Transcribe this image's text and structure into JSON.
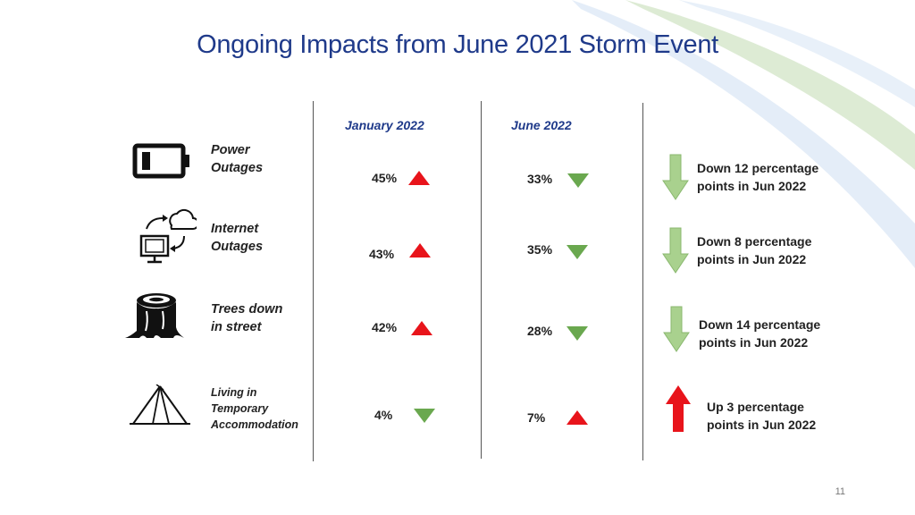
{
  "title": "Ongoing Impacts from June 2021 Storm Event",
  "columns": {
    "jan": "January 2022",
    "jun": "June 2022"
  },
  "rows": [
    {
      "label_line1": "Power",
      "label_line2": "Outages",
      "label_line3": "",
      "icon": "battery-icon",
      "jan": "45%",
      "jan_trend": "up",
      "jun": "33%",
      "jun_trend": "down",
      "change_line1": "Down 12 percentage",
      "change_line2": "points in Jun 2022",
      "change_trend": "down"
    },
    {
      "label_line1": "Internet",
      "label_line2": "Outages",
      "label_line3": "",
      "icon": "cloud-computer-icon",
      "jan": "43%",
      "jan_trend": "up",
      "jun": "35%",
      "jun_trend": "down",
      "change_line1": "Down 8 percentage",
      "change_line2": "points in Jun 2022",
      "change_trend": "down"
    },
    {
      "label_line1": "Trees down",
      "label_line2": "in street",
      "label_line3": "",
      "icon": "tree-stump-icon",
      "jan": "42%",
      "jan_trend": "up",
      "jun": "28%",
      "jun_trend": "down",
      "change_line1": "Down 14 percentage",
      "change_line2": "points in Jun 2022",
      "change_trend": "down"
    },
    {
      "label_line1": "Living in",
      "label_line2": "Temporary",
      "label_line3": "Accommodation",
      "icon": "tent-icon",
      "jan": "4%",
      "jan_trend": "down",
      "jun": "7%",
      "jun_trend": "up",
      "change_line1": "Up 3 percentage",
      "change_line2": "points in Jun 2022",
      "change_trend": "up"
    }
  ],
  "colors": {
    "up": "#e8141b",
    "down": "#6aa84f",
    "down_arrow_light": "#a9d18e",
    "title": "#1f3a8a"
  },
  "page_number": "11"
}
